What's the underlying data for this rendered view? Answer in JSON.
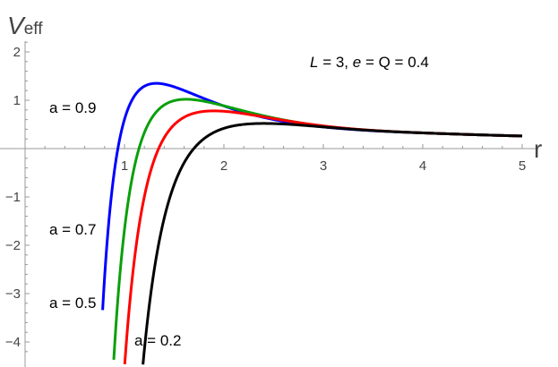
{
  "chart_data": {
    "type": "line",
    "xlabel": "r",
    "ylabel": "V",
    "ylabel_sub": "eff",
    "annotation": {
      "L_sym": "L",
      "L_val": " = 3, ",
      "e_sym": "e",
      "rest": " = Q = 0.4"
    },
    "xlim": [
      0,
      5.15
    ],
    "ylim": [
      -4.3,
      2.2
    ],
    "x_ticks": [
      1,
      2,
      3,
      4,
      5
    ],
    "x_tick_labels": [
      "1",
      "2",
      "3",
      "4",
      "5"
    ],
    "y_ticks": [
      -4,
      -3,
      -2,
      -1,
      1,
      2
    ],
    "y_tick_labels": [
      "−4",
      "−3",
      "−2",
      "−1",
      "1",
      "2"
    ],
    "grid": false,
    "L": 3,
    "e": 0.4,
    "Q": 0.4,
    "series": [
      {
        "label": "a = 0.9",
        "a": 0.9,
        "color": "#0000ff",
        "r_start": 0.78
      },
      {
        "label": "a = 0.7",
        "a": 0.7,
        "color": "#0aa00a",
        "r_start": 0.84
      },
      {
        "label": "a = 0.5",
        "a": 0.5,
        "color": "#ff0000",
        "r_start": 0.9
      },
      {
        "label": "a = 0.2",
        "a": 0.2,
        "color": "#000000",
        "r_start": 0.985
      }
    ],
    "x_end": 5.0
  }
}
